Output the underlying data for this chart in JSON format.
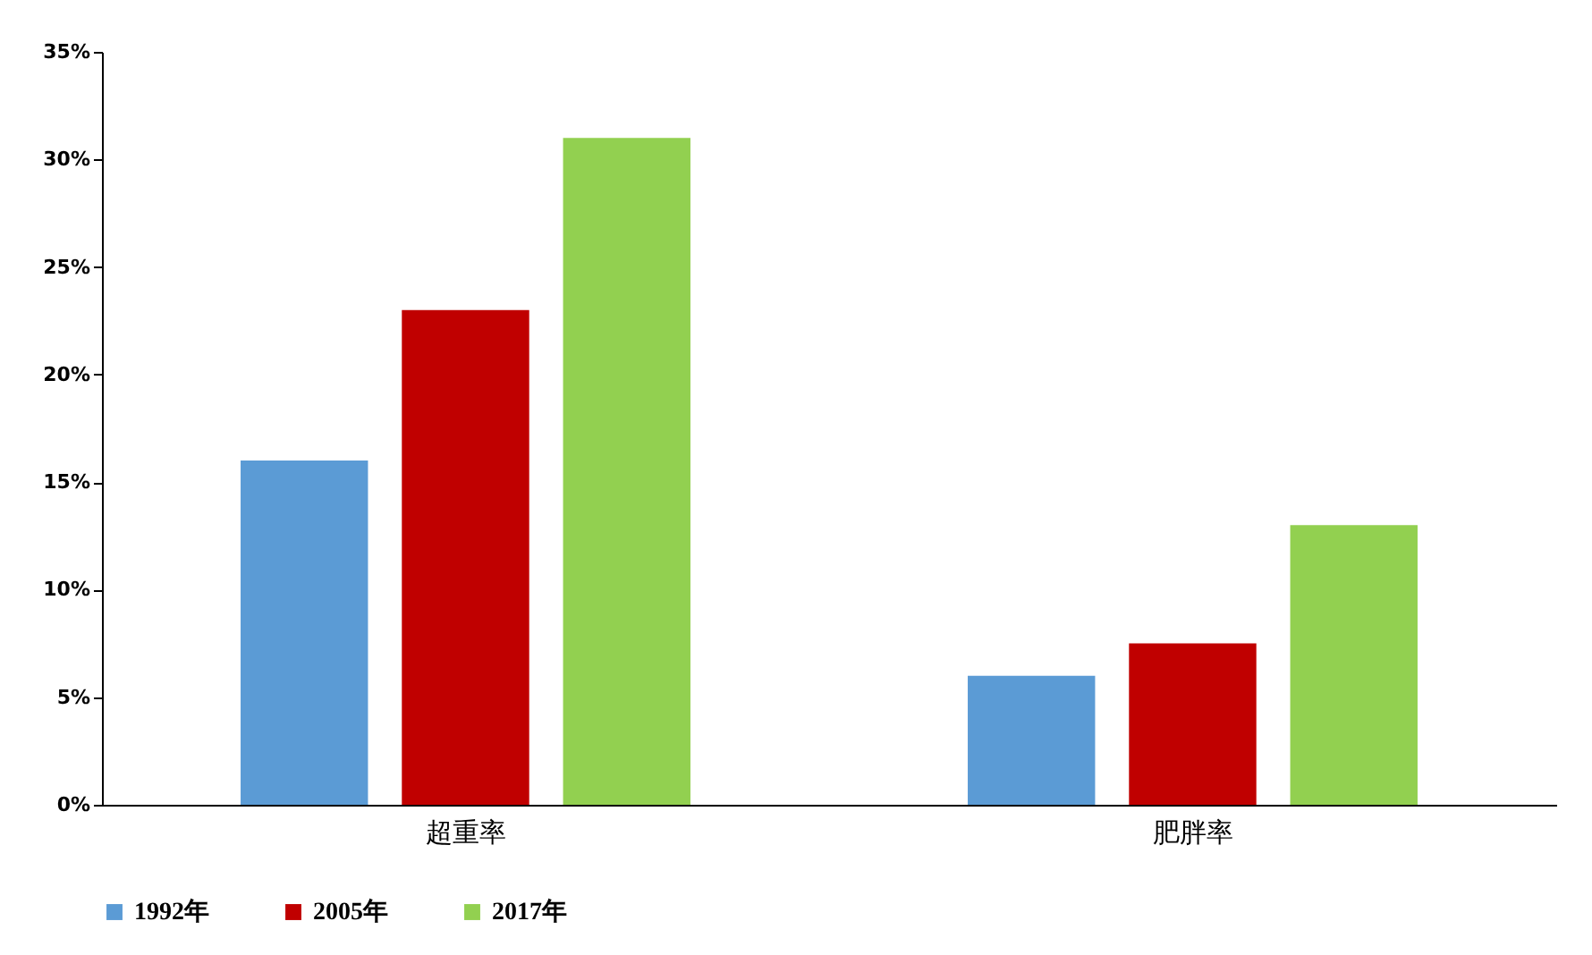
{
  "chart_data": {
    "type": "bar",
    "categories": [
      "超重率",
      "肥胖率"
    ],
    "series": [
      {
        "name": "1992年",
        "color": "#5b9bd5",
        "values": [
          16,
          6
        ]
      },
      {
        "name": "2005年",
        "color": "#c00000",
        "values": [
          23,
          7.5
        ]
      },
      {
        "name": "2017年",
        "color": "#92d050",
        "values": [
          31,
          13
        ]
      }
    ],
    "ylim": [
      0,
      35
    ],
    "yticks": [
      {
        "value": 0,
        "label": "0%"
      },
      {
        "value": 5,
        "label": "5%"
      },
      {
        "value": 10,
        "label": "10%"
      },
      {
        "value": 15,
        "label": "15%"
      },
      {
        "value": 20,
        "label": "20%"
      },
      {
        "value": 25,
        "label": "25%"
      },
      {
        "value": 30,
        "label": "30%"
      },
      {
        "value": 35,
        "label": "35%"
      }
    ],
    "grid": false,
    "legend": "bottom"
  }
}
